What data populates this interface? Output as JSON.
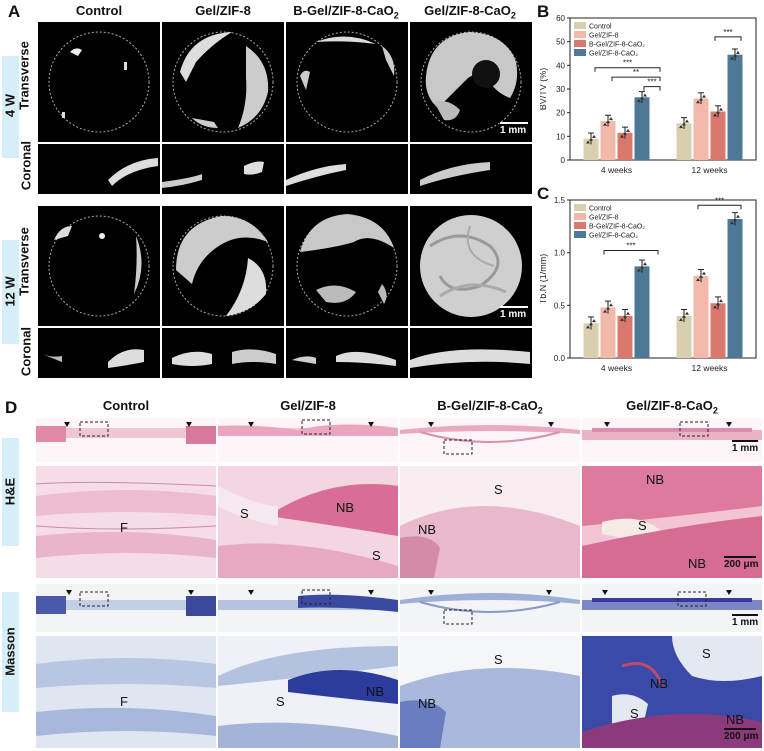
{
  "panel_letters": {
    "a": "A",
    "b": "B",
    "c": "C",
    "d": "D"
  },
  "ct_columns": [
    "Control",
    "Gel/ZIF-8",
    "B-Gel/ZIF-8-CaO",
    "Gel/ZIF-8-CaO"
  ],
  "ct_sub": "2",
  "ct_rows": {
    "w4": "4 W",
    "w12": "12 W",
    "transverse": "Transverse",
    "coronal": "Coronal"
  },
  "ct_scale": "1 mm",
  "histo_rows": {
    "he": "H&E",
    "masson": "Masson"
  },
  "histo_scale_low": "1 mm",
  "histo_scale_high": "200 μm",
  "histo_labels": {
    "he_control": "F",
    "he_gel_s": "S",
    "he_gel_nb": "NB",
    "he_gel_s2": "S",
    "he_b_s": "S",
    "he_b_nb": "NB",
    "he_g_nb": "NB",
    "he_g_s": "S",
    "he_g_nb2": "NB",
    "m_control": "F",
    "m_gel_s": "S",
    "m_gel_nb": "NB",
    "m_b_s": "S",
    "m_b_nb": "NB",
    "m_g_s": "S",
    "m_g_nb": "NB",
    "m_g_s2": "S",
    "m_g_nb2": "NB"
  },
  "chart_data": [
    {
      "type": "bar",
      "ylabel": "BV/TV (%)",
      "ylim": [
        0,
        60
      ],
      "yticks": [
        0,
        10,
        20,
        30,
        40,
        50,
        60
      ],
      "categories": [
        "4 weeks",
        "12 weeks"
      ],
      "series": [
        {
          "name": "Control",
          "values": [
            9,
            15.5
          ],
          "color": "#d9cfae"
        },
        {
          "name": "Gel/ZIF-8",
          "values": [
            16.5,
            26
          ],
          "color": "#f2b9aa"
        },
        {
          "name": "B-Gel/ZIF-8-CaO2",
          "values": [
            11.5,
            20.5
          ],
          "color": "#d9786c"
        },
        {
          "name": "Gel/ZIF-8-CaO2",
          "values": [
            26.5,
            44.5
          ],
          "color": "#4d7896"
        }
      ],
      "significance": [
        "***",
        "**",
        "***",
        "***"
      ]
    },
    {
      "type": "bar",
      "ylabel": "Tb.N (1/mm)",
      "ylim": [
        0,
        1.5
      ],
      "yticks": [
        0.0,
        0.5,
        1.0,
        1.5
      ],
      "categories": [
        "4 weeks",
        "12 weeks"
      ],
      "series": [
        {
          "name": "Control",
          "values": [
            0.33,
            0.4
          ],
          "color": "#d9cfae"
        },
        {
          "name": "Gel/ZIF-8",
          "values": [
            0.48,
            0.78
          ],
          "color": "#f2b9aa"
        },
        {
          "name": "B-Gel/ZIF-8-CaO2",
          "values": [
            0.4,
            0.52
          ],
          "color": "#d9786c"
        },
        {
          "name": "Gel/ZIF-8-CaO2",
          "values": [
            0.87,
            1.32
          ],
          "color": "#4d7896"
        }
      ],
      "significance": [
        "***",
        "***"
      ]
    }
  ]
}
